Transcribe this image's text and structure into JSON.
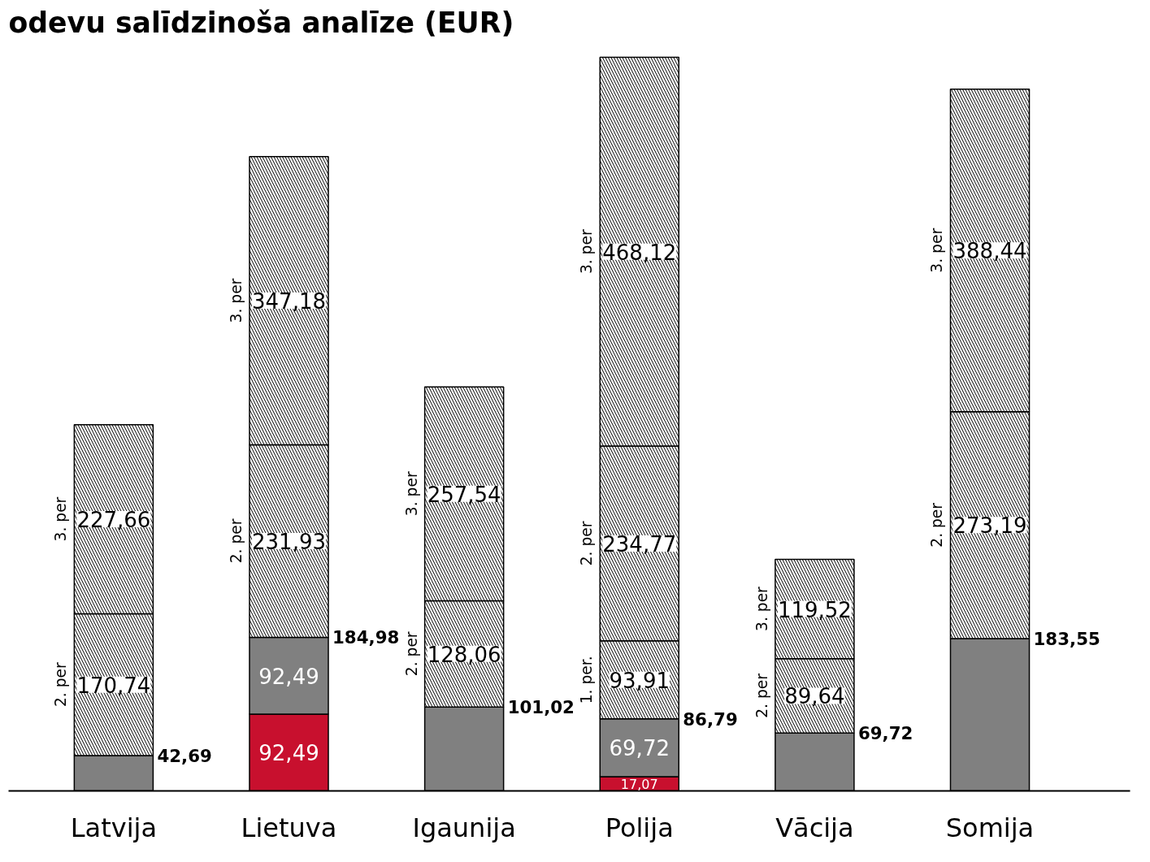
{
  "chart_data": {
    "type": "bar",
    "title": "odevu salīdzinoša analīze (EUR)",
    "categories": [
      "Latvija",
      "Lietuva",
      "Igaunija",
      "Polija",
      "Vācija",
      "Somija"
    ],
    "stacked": true,
    "tick_labels": "x",
    "grid": false,
    "series": [
      {
        "color": "#c8102e",
        "values": [
          null,
          92.49,
          null,
          17.07,
          null,
          null
        ],
        "value_labels": [
          null,
          "92,49",
          null,
          "17,07",
          null,
          null
        ]
      },
      {
        "color": "#808080",
        "values": [
          42.69,
          92.49,
          101.02,
          69.72,
          69.72,
          183.55
        ],
        "value_labels": [
          null,
          "92,49",
          null,
          "69,72",
          null,
          null
        ]
      },
      {
        "name": "1. per.",
        "color": "#000000",
        "values": [
          null,
          null,
          null,
          93.91,
          null,
          null
        ],
        "value_labels": [
          null,
          null,
          null,
          "93,91",
          null,
          null
        ]
      },
      {
        "name": "2. per",
        "color": "#000000",
        "values": [
          170.74,
          231.93,
          128.06,
          234.77,
          89.64,
          273.19
        ],
        "value_labels": [
          "170,74",
          "231,93",
          "128,06",
          "234,77",
          "89,64",
          "273,19"
        ]
      },
      {
        "name": "3. per",
        "color": "#000000",
        "values": [
          227.66,
          347.18,
          257.54,
          468.12,
          119.52,
          388.44
        ],
        "value_labels": [
          "227,66",
          "347,18",
          "257,54",
          "468,12",
          "119,52",
          "388,44"
        ]
      }
    ],
    "annotations": [
      {
        "text": "42,69",
        "x": "Latvija",
        "y": 42.69
      },
      {
        "text": "184,98",
        "x": "Lietuva",
        "y": 184.98
      },
      {
        "text": "101,02",
        "x": "Igaunija",
        "y": 101.02
      },
      {
        "text": "86,79",
        "x": "Polija",
        "y": 86.79
      },
      {
        "text": "69,72",
        "x": "Vācija",
        "y": 69.72
      },
      {
        "text": "183,55",
        "x": "Somija",
        "y": 183.55
      }
    ]
  }
}
